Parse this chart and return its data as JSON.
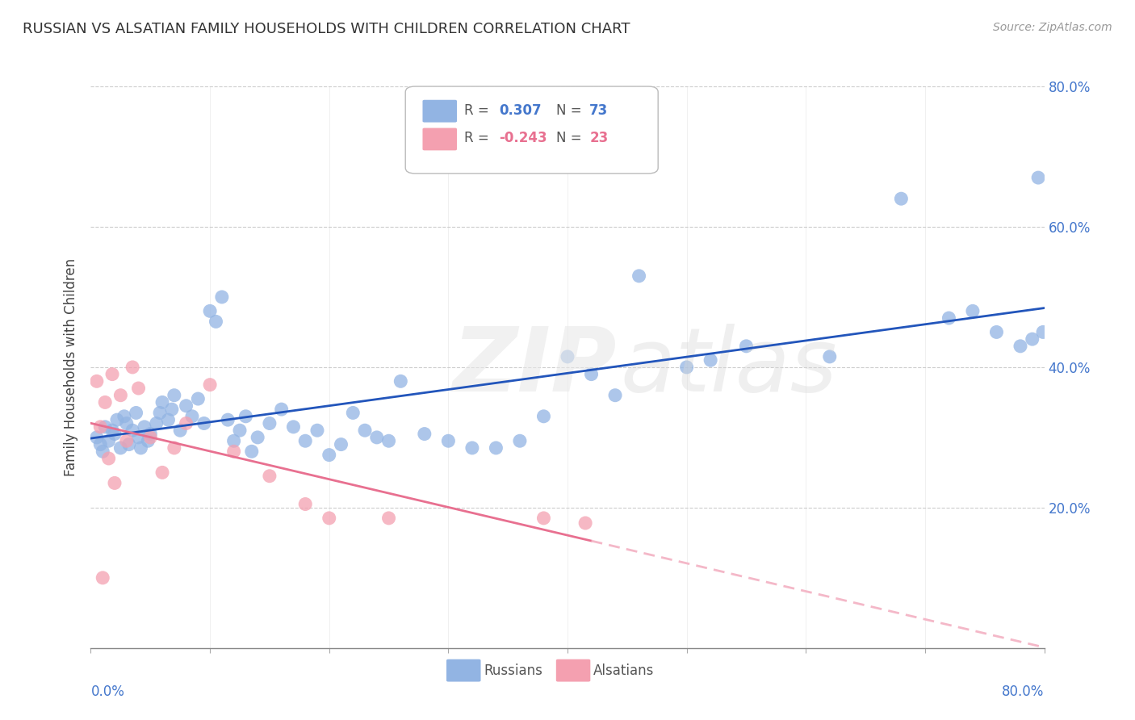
{
  "title": "RUSSIAN VS ALSATIAN FAMILY HOUSEHOLDS WITH CHILDREN CORRELATION CHART",
  "source": "Source: ZipAtlas.com",
  "ylabel": "Family Households with Children",
  "russian_R": "0.307",
  "russian_N": "73",
  "alsatian_R": "-0.243",
  "alsatian_N": "23",
  "russian_color": "#92b4e3",
  "alsatian_color": "#f4a0b0",
  "russian_line_color": "#2255bb",
  "alsatian_line_color": "#e87090",
  "alsatian_line_dash_color": "#f4b8c8",
  "background_color": "#ffffff",
  "grid_color": "#cccccc",
  "xlim": [
    0.0,
    0.8
  ],
  "ylim": [
    0.0,
    0.8
  ],
  "ytick_positions": [
    0.0,
    0.2,
    0.4,
    0.6,
    0.8
  ],
  "ytick_labels": [
    "",
    "20.0%",
    "40.0%",
    "60.0%",
    "80.0%"
  ],
  "russians_x": [
    0.005,
    0.008,
    0.01,
    0.012,
    0.015,
    0.018,
    0.02,
    0.022,
    0.025,
    0.028,
    0.03,
    0.032,
    0.035,
    0.038,
    0.04,
    0.042,
    0.045,
    0.048,
    0.05,
    0.055,
    0.058,
    0.06,
    0.065,
    0.068,
    0.07,
    0.075,
    0.08,
    0.085,
    0.09,
    0.095,
    0.1,
    0.105,
    0.11,
    0.115,
    0.12,
    0.125,
    0.13,
    0.135,
    0.14,
    0.15,
    0.16,
    0.17,
    0.18,
    0.19,
    0.2,
    0.21,
    0.22,
    0.23,
    0.24,
    0.25,
    0.26,
    0.28,
    0.3,
    0.32,
    0.34,
    0.36,
    0.38,
    0.4,
    0.42,
    0.44,
    0.46,
    0.5,
    0.52,
    0.55,
    0.62,
    0.68,
    0.72,
    0.74,
    0.76,
    0.78,
    0.79,
    0.795,
    0.799
  ],
  "russians_y": [
    0.3,
    0.29,
    0.28,
    0.315,
    0.295,
    0.31,
    0.305,
    0.325,
    0.285,
    0.33,
    0.32,
    0.29,
    0.31,
    0.335,
    0.3,
    0.285,
    0.315,
    0.295,
    0.305,
    0.32,
    0.335,
    0.35,
    0.325,
    0.34,
    0.36,
    0.31,
    0.345,
    0.33,
    0.355,
    0.32,
    0.48,
    0.465,
    0.5,
    0.325,
    0.295,
    0.31,
    0.33,
    0.28,
    0.3,
    0.32,
    0.34,
    0.315,
    0.295,
    0.31,
    0.275,
    0.29,
    0.335,
    0.31,
    0.3,
    0.295,
    0.38,
    0.305,
    0.295,
    0.285,
    0.285,
    0.295,
    0.33,
    0.415,
    0.39,
    0.36,
    0.53,
    0.4,
    0.41,
    0.43,
    0.415,
    0.64,
    0.47,
    0.48,
    0.45,
    0.43,
    0.44,
    0.67,
    0.45
  ],
  "alsatians_x": [
    0.005,
    0.008,
    0.01,
    0.012,
    0.015,
    0.018,
    0.02,
    0.025,
    0.03,
    0.035,
    0.04,
    0.05,
    0.06,
    0.07,
    0.08,
    0.1,
    0.12,
    0.15,
    0.18,
    0.2,
    0.25,
    0.38,
    0.415
  ],
  "alsatians_y": [
    0.38,
    0.315,
    0.1,
    0.35,
    0.27,
    0.39,
    0.235,
    0.36,
    0.295,
    0.4,
    0.37,
    0.3,
    0.25,
    0.285,
    0.32,
    0.375,
    0.28,
    0.245,
    0.205,
    0.185,
    0.185,
    0.185,
    0.178
  ]
}
